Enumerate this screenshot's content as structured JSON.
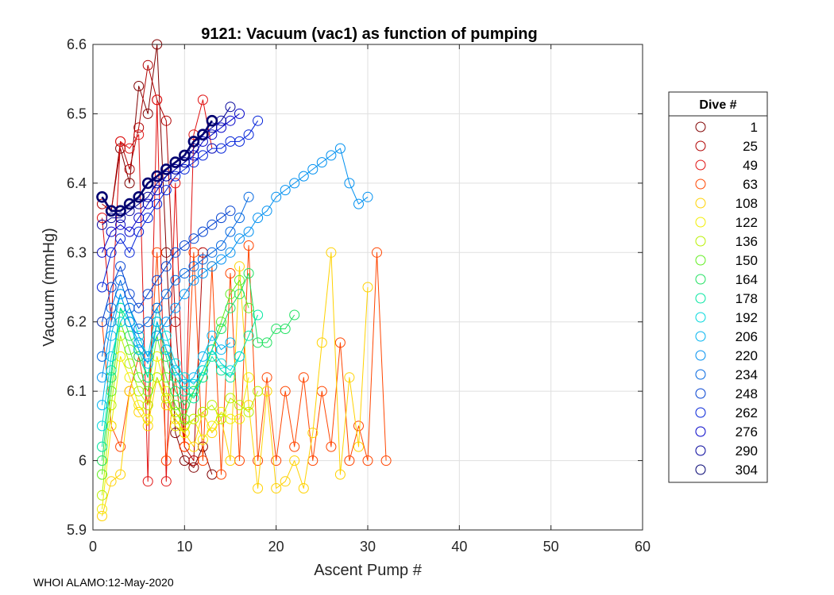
{
  "chart_data": {
    "type": "line",
    "title": "9121: Vacuum (vac1) as function of pumping",
    "xlabel": "Ascent Pump #",
    "ylabel": "Vacuum (mmHg)",
    "xlim": [
      0,
      60
    ],
    "ylim": [
      5.9,
      6.6
    ],
    "xticks": [
      0,
      10,
      20,
      30,
      40,
      50,
      60
    ],
    "yticks": [
      5.9,
      6,
      6.1,
      6.2,
      6.3,
      6.4,
      6.5,
      6.6
    ],
    "xtick_labels": [
      "0",
      "10",
      "20",
      "30",
      "40",
      "50",
      "60"
    ],
    "ytick_labels": [
      "5.9",
      "6",
      "6.1",
      "6.2",
      "6.3",
      "6.4",
      "6.5",
      "6.6"
    ],
    "grid": true,
    "marker": "open-circle",
    "legend": {
      "title": "Dive #",
      "placement": "outside-right",
      "entries": [
        {
          "label": "1",
          "color": "#800000"
        },
        {
          "label": "25",
          "color": "#b00000"
        },
        {
          "label": "49",
          "color": "#e01010"
        },
        {
          "label": "63",
          "color": "#ff4500"
        },
        {
          "label": "108",
          "color": "#ffd200"
        },
        {
          "label": "122",
          "color": "#f2ee00"
        },
        {
          "label": "136",
          "color": "#b8f000"
        },
        {
          "label": "150",
          "color": "#60ee20"
        },
        {
          "label": "164",
          "color": "#20e060"
        },
        {
          "label": "178",
          "color": "#00e6a0"
        },
        {
          "label": "192",
          "color": "#00d8dc"
        },
        {
          "label": "206",
          "color": "#00b4f0"
        },
        {
          "label": "220",
          "color": "#0090f0"
        },
        {
          "label": "234",
          "color": "#0066e0"
        },
        {
          "label": "248",
          "color": "#0040d0"
        },
        {
          "label": "262",
          "color": "#0020d8"
        },
        {
          "label": "276",
          "color": "#0000c8"
        },
        {
          "label": "290",
          "color": "#00009a"
        },
        {
          "label": "304",
          "color": "#000070"
        }
      ]
    },
    "series": [
      {
        "name": "1",
        "color": "#800000",
        "x": [
          1,
          2,
          3,
          4,
          5,
          6,
          7,
          8,
          9,
          10,
          11,
          12,
          13
        ],
        "y": [
          6.38,
          6.36,
          6.45,
          6.4,
          6.54,
          6.5,
          6.6,
          6.3,
          6.04,
          6.0,
          5.99,
          6.02,
          5.98
        ]
      },
      {
        "name": "25",
        "color": "#b00000",
        "x": [
          1,
          2,
          3,
          4,
          5,
          6,
          7,
          8,
          9,
          10,
          11,
          12
        ],
        "y": [
          6.37,
          6.36,
          6.46,
          6.42,
          6.48,
          6.57,
          6.52,
          6.49,
          6.2,
          6.02,
          6.0,
          6.3
        ]
      },
      {
        "name": "49",
        "color": "#e01010",
        "x": [
          1,
          2,
          3,
          4,
          5,
          6,
          7,
          8,
          9,
          10,
          11,
          12,
          13
        ],
        "y": [
          6.35,
          6.2,
          6.46,
          6.45,
          6.47,
          5.97,
          6.52,
          5.97,
          6.4,
          6.02,
          6.47,
          6.52,
          6.45
        ]
      },
      {
        "name": "63",
        "color": "#ff4500",
        "x": [
          1,
          2,
          3,
          4,
          5,
          6,
          7,
          8,
          9,
          10,
          11,
          12,
          13,
          14,
          15,
          16,
          17,
          18,
          19,
          20,
          21,
          22,
          23,
          24,
          25,
          26,
          27,
          28,
          29,
          30,
          31,
          32
        ],
        "y": [
          6.2,
          6.05,
          6.02,
          6.1,
          6.15,
          6.08,
          6.3,
          6.0,
          6.12,
          6.02,
          6.3,
          6.0,
          6.28,
          5.98,
          6.27,
          6.0,
          6.31,
          6.0,
          6.12,
          6.0,
          6.1,
          6.02,
          6.12,
          6.0,
          6.1,
          6.02,
          6.17,
          6.0,
          6.05,
          6.0,
          6.3,
          6.0
        ]
      },
      {
        "name": "108",
        "color": "#ffd200",
        "x": [
          1,
          2,
          3,
          4,
          5,
          6,
          7,
          8,
          9,
          10,
          11,
          12,
          13,
          14,
          15,
          16,
          17,
          18,
          19,
          20,
          21,
          22,
          23,
          24,
          25,
          26,
          27,
          28,
          29,
          30
        ],
        "y": [
          5.92,
          5.97,
          5.98,
          6.1,
          6.07,
          6.05,
          6.12,
          6.08,
          6.06,
          6.04,
          6.02,
          6.07,
          6.04,
          6.06,
          6.0,
          6.28,
          6.08,
          5.96,
          6.1,
          5.96,
          5.97,
          6.0,
          5.96,
          6.04,
          6.17,
          6.3,
          5.98,
          6.12,
          6.02,
          6.25
        ]
      },
      {
        "name": "122",
        "color": "#f2ee00",
        "x": [
          1,
          2,
          3,
          4,
          5,
          6,
          7,
          8,
          9,
          10,
          11,
          12,
          13,
          14,
          15,
          16,
          17
        ],
        "y": [
          5.93,
          6.05,
          6.15,
          6.12,
          6.08,
          6.06,
          6.15,
          6.1,
          6.05,
          6.04,
          6.06,
          6.03,
          6.05,
          6.07,
          6.06,
          6.06,
          6.12
        ]
      },
      {
        "name": "136",
        "color": "#b8f000",
        "x": [
          1,
          2,
          3,
          4,
          5,
          6,
          7,
          8,
          9,
          10,
          11,
          12,
          13,
          14,
          15,
          16,
          17,
          18
        ],
        "y": [
          5.95,
          6.08,
          6.18,
          6.14,
          6.1,
          6.08,
          6.12,
          6.09,
          6.07,
          6.05,
          6.06,
          6.07,
          6.08,
          6.06,
          6.09,
          6.08,
          6.07,
          6.1
        ]
      },
      {
        "name": "150",
        "color": "#60ee20",
        "x": [
          1,
          2,
          3,
          4,
          5,
          6,
          7,
          8,
          9,
          10,
          11,
          12,
          13,
          14,
          15,
          16,
          17
        ],
        "y": [
          5.98,
          6.1,
          6.2,
          6.16,
          6.12,
          6.1,
          6.18,
          6.12,
          6.08,
          6.06,
          6.1,
          6.12,
          6.16,
          6.2,
          6.24,
          6.26,
          6.22
        ]
      },
      {
        "name": "164",
        "color": "#20e060",
        "x": [
          1,
          2,
          3,
          4,
          5,
          6,
          7,
          8,
          9,
          10,
          11,
          12,
          13,
          14,
          15,
          16,
          17,
          18,
          19,
          20,
          21,
          22
        ],
        "y": [
          6.0,
          6.12,
          6.22,
          6.18,
          6.15,
          6.12,
          6.2,
          6.15,
          6.1,
          6.08,
          6.1,
          6.13,
          6.16,
          6.19,
          6.22,
          6.24,
          6.27,
          6.17,
          6.17,
          6.19,
          6.19,
          6.21
        ]
      },
      {
        "name": "178",
        "color": "#00e6a0",
        "x": [
          1,
          2,
          3,
          4,
          5,
          6,
          7,
          8,
          9,
          10,
          11,
          12,
          13,
          14,
          15,
          16,
          17,
          18
        ],
        "y": [
          6.02,
          6.13,
          6.22,
          6.2,
          6.16,
          6.12,
          6.2,
          6.16,
          6.12,
          6.1,
          6.09,
          6.12,
          6.15,
          6.13,
          6.12,
          6.15,
          6.18,
          6.21
        ]
      },
      {
        "name": "192",
        "color": "#00d8dc",
        "x": [
          1,
          2,
          3,
          4,
          5,
          6,
          7,
          8,
          9,
          10,
          11,
          12,
          13,
          14,
          15,
          16
        ],
        "y": [
          6.05,
          6.15,
          6.2,
          6.22,
          6.18,
          6.15,
          6.22,
          6.18,
          6.14,
          6.12,
          6.11,
          6.13,
          6.16,
          6.14,
          6.13,
          6.15
        ]
      },
      {
        "name": "206",
        "color": "#00b4f0",
        "x": [
          1,
          2,
          3,
          4,
          5,
          6,
          7,
          8,
          9,
          10,
          11,
          12,
          13,
          14,
          15
        ],
        "y": [
          6.08,
          6.18,
          6.24,
          6.2,
          6.16,
          6.14,
          6.2,
          6.16,
          6.13,
          6.11,
          6.12,
          6.15,
          6.18,
          6.16,
          6.17
        ]
      },
      {
        "name": "220",
        "color": "#0090f0",
        "x": [
          1,
          2,
          3,
          4,
          5,
          6,
          7,
          8,
          9,
          10,
          11,
          12,
          13,
          14,
          15,
          16,
          17,
          18,
          19,
          20,
          21,
          22,
          23,
          24,
          25,
          26,
          27,
          28,
          29,
          30
        ],
        "y": [
          6.12,
          6.2,
          6.24,
          6.2,
          6.17,
          6.15,
          6.18,
          6.2,
          6.22,
          6.24,
          6.26,
          6.27,
          6.28,
          6.29,
          6.3,
          6.32,
          6.33,
          6.35,
          6.36,
          6.38,
          6.39,
          6.4,
          6.41,
          6.42,
          6.43,
          6.44,
          6.45,
          6.4,
          6.37,
          6.38
        ]
      },
      {
        "name": "234",
        "color": "#0066e0",
        "x": [
          1,
          2,
          3,
          4,
          5,
          6,
          7,
          8,
          9,
          10,
          11,
          12,
          13,
          14,
          15,
          16,
          17
        ],
        "y": [
          6.15,
          6.22,
          6.26,
          6.22,
          6.19,
          6.2,
          6.22,
          6.24,
          6.26,
          6.27,
          6.28,
          6.29,
          6.3,
          6.31,
          6.33,
          6.35,
          6.38
        ]
      },
      {
        "name": "248",
        "color": "#0040d0",
        "x": [
          1,
          2,
          3,
          4,
          5,
          6,
          7,
          8,
          9,
          10,
          11,
          12,
          13,
          14,
          15
        ],
        "y": [
          6.2,
          6.25,
          6.28,
          6.24,
          6.22,
          6.24,
          6.26,
          6.28,
          6.3,
          6.31,
          6.32,
          6.33,
          6.34,
          6.35,
          6.36
        ]
      },
      {
        "name": "262",
        "color": "#0020d8",
        "x": [
          1,
          2,
          3,
          4,
          5,
          6,
          7,
          8,
          9,
          10,
          11,
          12,
          13,
          14,
          15,
          16,
          17,
          18
        ],
        "y": [
          6.25,
          6.3,
          6.32,
          6.3,
          6.33,
          6.35,
          6.37,
          6.39,
          6.41,
          6.42,
          6.43,
          6.44,
          6.45,
          6.45,
          6.46,
          6.46,
          6.47,
          6.49
        ]
      },
      {
        "name": "276",
        "color": "#0000c8",
        "x": [
          1,
          2,
          3,
          4,
          5,
          6,
          7,
          8,
          9,
          10,
          11,
          12,
          13,
          14,
          15,
          16
        ],
        "y": [
          6.3,
          6.33,
          6.34,
          6.33,
          6.35,
          6.37,
          6.39,
          6.41,
          6.42,
          6.43,
          6.44,
          6.46,
          6.47,
          6.48,
          6.49,
          6.5
        ]
      },
      {
        "name": "290",
        "color": "#00009a",
        "x": [
          1,
          2,
          3,
          4,
          5,
          6,
          7,
          8,
          9,
          10,
          11,
          12,
          13,
          14,
          15
        ],
        "y": [
          6.34,
          6.35,
          6.35,
          6.36,
          6.37,
          6.38,
          6.4,
          6.41,
          6.42,
          6.43,
          6.45,
          6.47,
          6.48,
          6.49,
          6.51
        ]
      },
      {
        "name": "304",
        "color": "#000070",
        "x": [
          1,
          2,
          3,
          4,
          5,
          6,
          7,
          8,
          9,
          10,
          11,
          12,
          13
        ],
        "y": [
          6.38,
          6.36,
          6.36,
          6.37,
          6.38,
          6.4,
          6.41,
          6.42,
          6.43,
          6.44,
          6.46,
          6.47,
          6.49
        ]
      }
    ]
  },
  "footer": {
    "text": "WHOI ALAMO:12-May-2020"
  }
}
